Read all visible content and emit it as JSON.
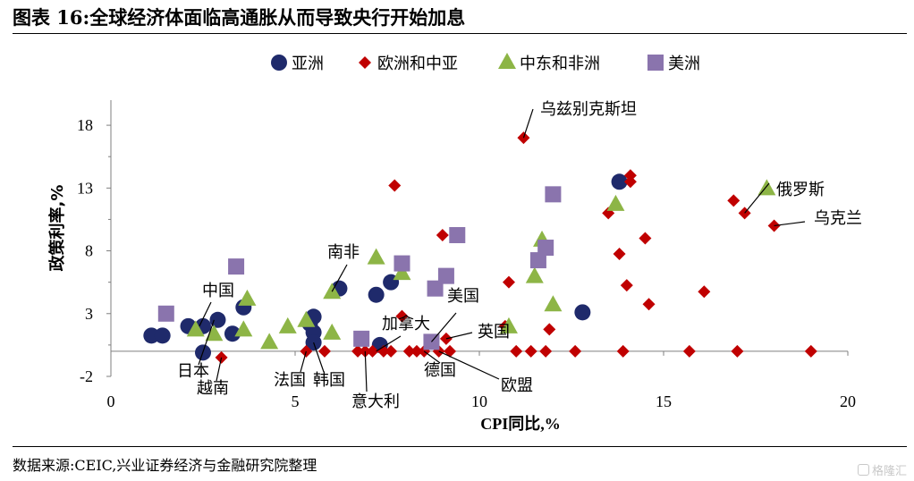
{
  "figure_title": "图表 16:全球经济体面临高通胀从而导致央行开始加息",
  "source": "数据来源:CEIC,兴业证券经济与金融研究院整理",
  "watermark": "格隆汇",
  "colors": {
    "asia": "#1f2a6b",
    "europe_central_asia": "#c00000",
    "middle_east_africa": "#8db546",
    "americas": "#8a74ad",
    "axis": "#7f7f7f"
  },
  "chart_data": {
    "type": "scatter",
    "xlabel": "CPI同比,%",
    "ylabel": "政策利率,%",
    "xlim": [
      0,
      20
    ],
    "ylim": [
      -2,
      20
    ],
    "xticks": [
      0,
      5,
      10,
      15,
      20
    ],
    "yticks": [
      -2,
      3,
      8,
      13,
      18
    ],
    "grid": false,
    "legend": "top",
    "series": [
      {
        "name": "亚洲",
        "marker": "circle",
        "color": "#1f2a6b",
        "points": [
          [
            1.1,
            1.25
          ],
          [
            1.4,
            1.25
          ],
          [
            2.1,
            2.0
          ],
          [
            2.5,
            2.0
          ],
          [
            2.5,
            -0.1
          ],
          [
            2.9,
            2.5
          ],
          [
            3.3,
            1.4
          ],
          [
            3.6,
            3.5
          ],
          [
            5.4,
            2.2
          ],
          [
            5.5,
            2.75
          ],
          [
            5.5,
            1.5
          ],
          [
            5.5,
            0.7
          ],
          [
            6.2,
            5.0
          ],
          [
            7.2,
            4.5
          ],
          [
            7.3,
            0.5
          ],
          [
            7.6,
            5.5
          ],
          [
            12.8,
            3.1
          ],
          [
            13.8,
            13.5
          ]
        ]
      },
      {
        "name": "欧洲和中亚",
        "marker": "diamond",
        "color": "#c00000",
        "points": [
          [
            3.0,
            -0.5
          ],
          [
            5.3,
            0.0
          ],
          [
            5.8,
            0.0
          ],
          [
            6.7,
            0.0
          ],
          [
            6.9,
            0.0
          ],
          [
            7.1,
            0.0
          ],
          [
            7.4,
            0.0
          ],
          [
            7.6,
            0.0
          ],
          [
            7.7,
            13.2
          ],
          [
            7.9,
            2.8
          ],
          [
            8.1,
            0.0
          ],
          [
            8.3,
            0.0
          ],
          [
            8.5,
            0.0
          ],
          [
            8.9,
            0.0
          ],
          [
            9.0,
            9.25
          ],
          [
            9.1,
            1.0
          ],
          [
            9.2,
            0.0
          ],
          [
            10.7,
            2.0
          ],
          [
            10.8,
            5.5
          ],
          [
            11.0,
            0.0
          ],
          [
            11.4,
            0.0
          ],
          [
            11.8,
            0.0
          ],
          [
            11.9,
            1.75
          ],
          [
            12.6,
            0.0
          ],
          [
            13.5,
            11.0
          ],
          [
            13.8,
            7.75
          ],
          [
            13.9,
            0.0
          ],
          [
            14.0,
            5.25
          ],
          [
            14.1,
            14.0
          ],
          [
            14.1,
            13.5
          ],
          [
            14.5,
            9.0
          ],
          [
            14.6,
            3.75
          ],
          [
            15.7,
            0.0
          ],
          [
            16.1,
            4.75
          ],
          [
            16.9,
            12.0
          ],
          [
            17.0,
            0.0
          ],
          [
            17.2,
            11.0
          ],
          [
            18.0,
            10.0
          ],
          [
            19.0,
            0.0
          ],
          [
            11.2,
            17.0
          ]
        ]
      },
      {
        "name": "中东和非洲",
        "marker": "triangle",
        "color": "#8db546",
        "points": [
          [
            2.3,
            1.75
          ],
          [
            2.8,
            1.4
          ],
          [
            3.6,
            1.75
          ],
          [
            3.7,
            4.2
          ],
          [
            4.3,
            0.75
          ],
          [
            4.8,
            2.0
          ],
          [
            5.3,
            2.5
          ],
          [
            6.0,
            1.5
          ],
          [
            6.0,
            4.75
          ],
          [
            7.2,
            7.5
          ],
          [
            7.9,
            6.25
          ],
          [
            10.8,
            2.0
          ],
          [
            11.5,
            6.0
          ],
          [
            11.7,
            8.9
          ],
          [
            12.0,
            3.75
          ],
          [
            13.7,
            11.75
          ],
          [
            17.8,
            13.0
          ]
        ]
      },
      {
        "name": "美洲",
        "marker": "square",
        "color": "#8a74ad",
        "points": [
          [
            1.5,
            3.0
          ],
          [
            3.4,
            6.75
          ],
          [
            6.8,
            1.0
          ],
          [
            7.9,
            7.0
          ],
          [
            8.7,
            0.75
          ],
          [
            8.8,
            5.0
          ],
          [
            9.1,
            6.0
          ],
          [
            9.4,
            9.25
          ],
          [
            11.6,
            7.25
          ],
          [
            11.8,
            8.25
          ],
          [
            12.0,
            12.5
          ]
        ]
      }
    ],
    "annotations": [
      {
        "text": "乌兹别克斯坦",
        "point": [
          11.2,
          17.0
        ]
      },
      {
        "text": "俄罗斯",
        "point": [
          17.2,
          11.0
        ]
      },
      {
        "text": "乌克兰",
        "point": [
          18.0,
          10.0
        ]
      },
      {
        "text": "南非",
        "point": [
          6.0,
          4.75
        ]
      },
      {
        "text": "中国",
        "point": [
          2.4,
          2.0
        ]
      },
      {
        "text": "美国",
        "point": [
          8.7,
          0.75
        ]
      },
      {
        "text": "加拿大",
        "point": [
          7.2,
          0.0
        ]
      },
      {
        "text": "英国",
        "point": [
          9.1,
          1.0
        ]
      },
      {
        "text": "日本",
        "point": [
          2.8,
          2.5
        ]
      },
      {
        "text": "越南",
        "point": [
          3.0,
          -0.5
        ]
      },
      {
        "text": "法国",
        "point": [
          5.3,
          0.0
        ]
      },
      {
        "text": "韩国",
        "point": [
          5.5,
          0.7
        ]
      },
      {
        "text": "意大利",
        "point": [
          6.9,
          0.0
        ]
      },
      {
        "text": "德国",
        "point": [
          8.5,
          0.0
        ]
      },
      {
        "text": "欧盟",
        "point": [
          8.9,
          0.0
        ]
      }
    ]
  }
}
